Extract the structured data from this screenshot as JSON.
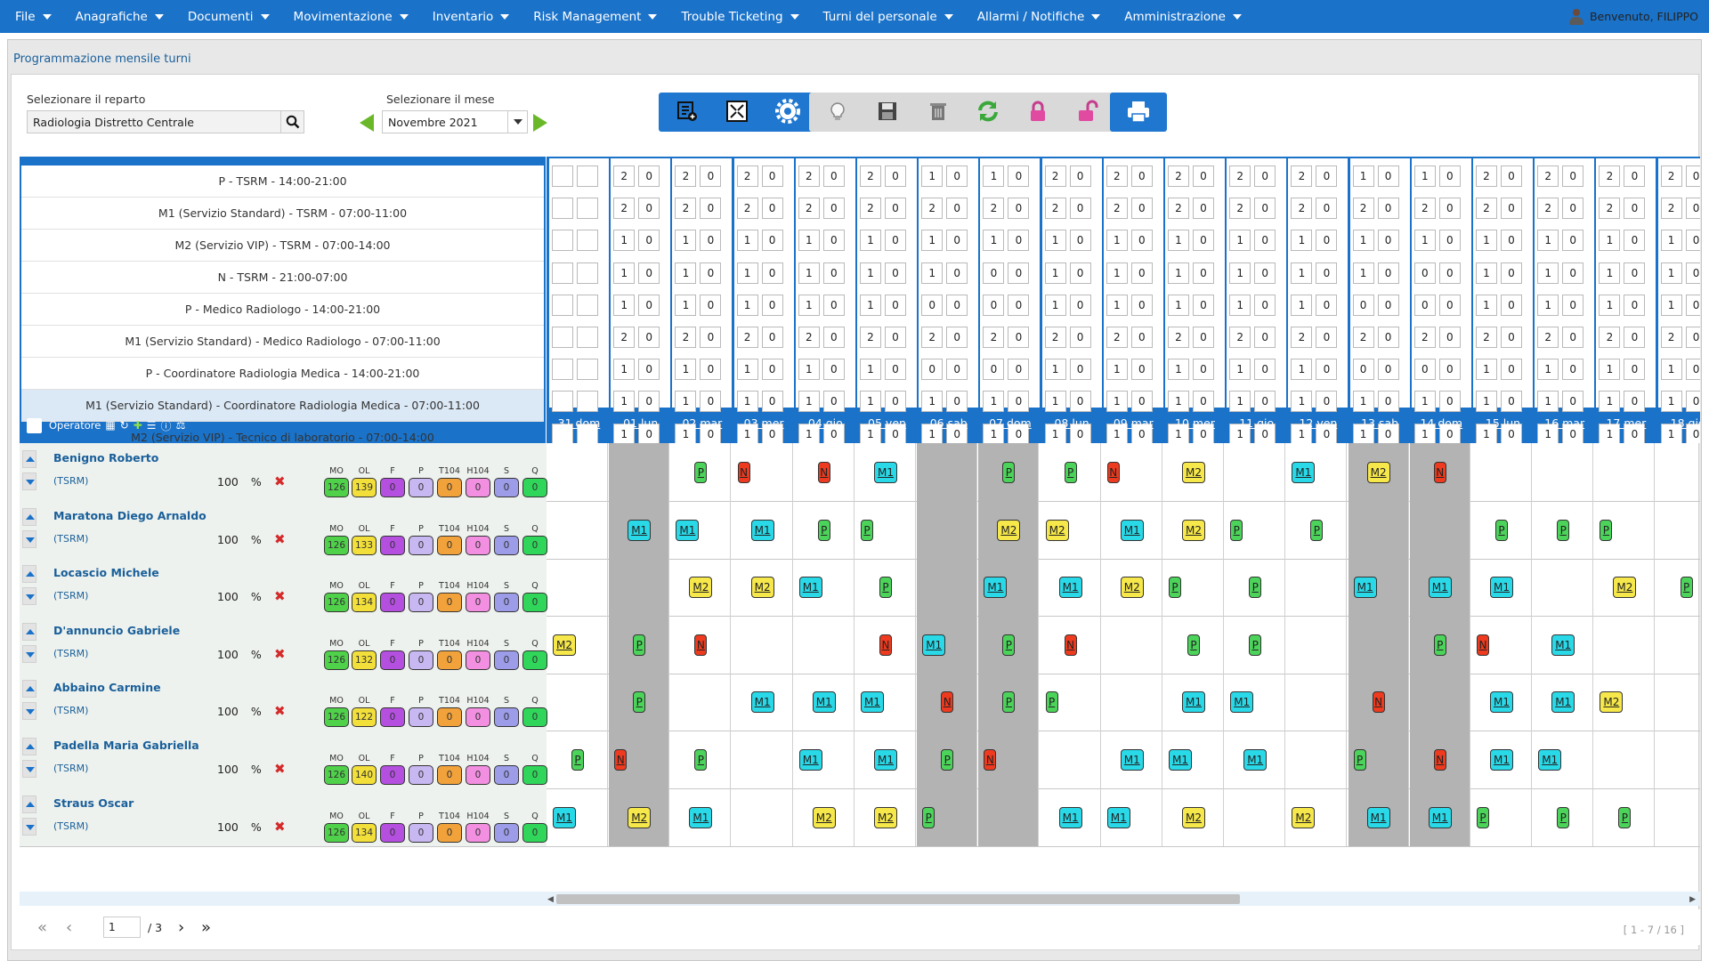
{
  "menu": {
    "items": [
      "File",
      "Anagrafiche",
      "Documenti",
      "Movimentazione",
      "Inventario",
      "Risk Management",
      "Trouble Ticketing",
      "Turni del personale",
      "Allarmi / Notifiche",
      "Amministrazione"
    ],
    "welcome": "Benvenuto, FILIPPO"
  },
  "page": {
    "title": "Programmazione mensile turni",
    "reparto_label": "Selezionare il reparto",
    "reparto_value": "Radiologia Distretto Centrale",
    "mese_label": "Selezionare il mese",
    "mese_value": "Novembre 2021"
  },
  "toolbar": [
    {
      "icon": "list-add-icon",
      "style": "blue"
    },
    {
      "icon": "expand-icon",
      "style": "blue"
    },
    {
      "icon": "gear-icon",
      "style": "blue"
    },
    {
      "icon": "lightbulb-icon",
      "style": "grey"
    },
    {
      "icon": "save-icon",
      "style": "grey"
    },
    {
      "icon": "trash-icon",
      "style": "grey"
    },
    {
      "icon": "refresh-icon",
      "style": "grey"
    },
    {
      "icon": "lock-icon",
      "style": "grey"
    },
    {
      "icon": "unlock-icon",
      "style": "grey"
    },
    {
      "icon": "print-icon",
      "style": "blue"
    }
  ],
  "requirements": [
    "P - TSRM - 14:00-21:00",
    "M1 (Servizio Standard) - TSRM - 07:00-11:00",
    "M2 (Servizio VIP) - TSRM - 07:00-14:00",
    "N - TSRM - 21:00-07:00",
    "P - Medico Radiologo - 14:00-21:00",
    "M1 (Servizio Standard) - Medico Radiologo - 07:00-11:00",
    "P - Coordinatore Radiologia Medica - 14:00-21:00",
    "M1 (Servizio Standard) - Coordinatore Radiologia Medica - 07:00-11:00",
    "M2 (Servizio VIP) - Tecnico di laboratorio - 07:00-14:00"
  ],
  "operatore_label": "Operatore",
  "days": [
    {
      "label": "31 dom",
      "weekend": false,
      "req": [
        [
          "",
          ""
        ],
        [
          "",
          ""
        ],
        [
          "",
          ""
        ],
        [
          "",
          ""
        ],
        [
          "",
          ""
        ],
        [
          "",
          ""
        ],
        [
          "",
          ""
        ],
        [
          "",
          ""
        ],
        [
          "",
          ""
        ]
      ]
    },
    {
      "label": "01 lun",
      "weekend": true,
      "req": [
        [
          "2",
          "0"
        ],
        [
          "2",
          "0"
        ],
        [
          "1",
          "0"
        ],
        [
          "1",
          "0"
        ],
        [
          "1",
          "0"
        ],
        [
          "2",
          "0"
        ],
        [
          "1",
          "0"
        ],
        [
          "1",
          "0"
        ],
        [
          "1",
          "0"
        ]
      ]
    },
    {
      "label": "02 mar",
      "weekend": false,
      "req": [
        [
          "2",
          "0"
        ],
        [
          "2",
          "0"
        ],
        [
          "1",
          "0"
        ],
        [
          "1",
          "0"
        ],
        [
          "1",
          "0"
        ],
        [
          "2",
          "0"
        ],
        [
          "1",
          "0"
        ],
        [
          "1",
          "0"
        ],
        [
          "1",
          "0"
        ]
      ]
    },
    {
      "label": "03 mer",
      "weekend": false,
      "req": [
        [
          "2",
          "0"
        ],
        [
          "2",
          "0"
        ],
        [
          "1",
          "0"
        ],
        [
          "1",
          "0"
        ],
        [
          "1",
          "0"
        ],
        [
          "2",
          "0"
        ],
        [
          "1",
          "0"
        ],
        [
          "1",
          "0"
        ],
        [
          "1",
          "0"
        ]
      ]
    },
    {
      "label": "04 gio",
      "weekend": false,
      "req": [
        [
          "2",
          "0"
        ],
        [
          "2",
          "0"
        ],
        [
          "1",
          "0"
        ],
        [
          "1",
          "0"
        ],
        [
          "1",
          "0"
        ],
        [
          "2",
          "0"
        ],
        [
          "1",
          "0"
        ],
        [
          "1",
          "0"
        ],
        [
          "1",
          "0"
        ]
      ]
    },
    {
      "label": "05 ven",
      "weekend": false,
      "req": [
        [
          "2",
          "0"
        ],
        [
          "2",
          "0"
        ],
        [
          "1",
          "0"
        ],
        [
          "1",
          "0"
        ],
        [
          "1",
          "0"
        ],
        [
          "2",
          "0"
        ],
        [
          "1",
          "0"
        ],
        [
          "1",
          "0"
        ],
        [
          "1",
          "0"
        ]
      ]
    },
    {
      "label": "06 sab",
      "weekend": true,
      "req": [
        [
          "1",
          "0"
        ],
        [
          "2",
          "0"
        ],
        [
          "1",
          "0"
        ],
        [
          "1",
          "0"
        ],
        [
          "0",
          "0"
        ],
        [
          "2",
          "0"
        ],
        [
          "0",
          "0"
        ],
        [
          "1",
          "0"
        ],
        [
          "1",
          "0"
        ]
      ]
    },
    {
      "label": "07 dom",
      "weekend": true,
      "req": [
        [
          "1",
          "0"
        ],
        [
          "2",
          "0"
        ],
        [
          "1",
          "0"
        ],
        [
          "0",
          "0"
        ],
        [
          "0",
          "0"
        ],
        [
          "2",
          "0"
        ],
        [
          "0",
          "0"
        ],
        [
          "1",
          "0"
        ],
        [
          "1",
          "0"
        ]
      ]
    },
    {
      "label": "08 lun",
      "weekend": false,
      "req": [
        [
          "2",
          "0"
        ],
        [
          "2",
          "0"
        ],
        [
          "1",
          "0"
        ],
        [
          "1",
          "0"
        ],
        [
          "1",
          "0"
        ],
        [
          "2",
          "0"
        ],
        [
          "1",
          "0"
        ],
        [
          "1",
          "0"
        ],
        [
          "1",
          "0"
        ]
      ]
    },
    {
      "label": "09 mar",
      "weekend": false,
      "req": [
        [
          "2",
          "0"
        ],
        [
          "2",
          "0"
        ],
        [
          "1",
          "0"
        ],
        [
          "1",
          "0"
        ],
        [
          "1",
          "0"
        ],
        [
          "2",
          "0"
        ],
        [
          "1",
          "0"
        ],
        [
          "1",
          "0"
        ],
        [
          "1",
          "0"
        ]
      ]
    },
    {
      "label": "10 mer",
      "weekend": false,
      "req": [
        [
          "2",
          "0"
        ],
        [
          "2",
          "0"
        ],
        [
          "1",
          "0"
        ],
        [
          "1",
          "0"
        ],
        [
          "1",
          "0"
        ],
        [
          "2",
          "0"
        ],
        [
          "1",
          "0"
        ],
        [
          "1",
          "0"
        ],
        [
          "1",
          "0"
        ]
      ]
    },
    {
      "label": "11 gio",
      "weekend": false,
      "req": [
        [
          "2",
          "0"
        ],
        [
          "2",
          "0"
        ],
        [
          "1",
          "0"
        ],
        [
          "1",
          "0"
        ],
        [
          "1",
          "0"
        ],
        [
          "2",
          "0"
        ],
        [
          "1",
          "0"
        ],
        [
          "1",
          "0"
        ],
        [
          "1",
          "0"
        ]
      ]
    },
    {
      "label": "12 ven",
      "weekend": false,
      "req": [
        [
          "2",
          "0"
        ],
        [
          "2",
          "0"
        ],
        [
          "1",
          "0"
        ],
        [
          "1",
          "0"
        ],
        [
          "1",
          "0"
        ],
        [
          "2",
          "0"
        ],
        [
          "1",
          "0"
        ],
        [
          "1",
          "0"
        ],
        [
          "1",
          "0"
        ]
      ]
    },
    {
      "label": "13 sab",
      "weekend": true,
      "req": [
        [
          "1",
          "0"
        ],
        [
          "2",
          "0"
        ],
        [
          "1",
          "0"
        ],
        [
          "1",
          "0"
        ],
        [
          "0",
          "0"
        ],
        [
          "2",
          "0"
        ],
        [
          "0",
          "0"
        ],
        [
          "1",
          "0"
        ],
        [
          "1",
          "0"
        ]
      ]
    },
    {
      "label": "14 dom",
      "weekend": true,
      "req": [
        [
          "1",
          "0"
        ],
        [
          "2",
          "0"
        ],
        [
          "1",
          "0"
        ],
        [
          "0",
          "0"
        ],
        [
          "0",
          "0"
        ],
        [
          "2",
          "0"
        ],
        [
          "0",
          "0"
        ],
        [
          "1",
          "0"
        ],
        [
          "1",
          "0"
        ]
      ]
    },
    {
      "label": "15 lun",
      "weekend": false,
      "req": [
        [
          "2",
          "0"
        ],
        [
          "2",
          "0"
        ],
        [
          "1",
          "0"
        ],
        [
          "1",
          "0"
        ],
        [
          "1",
          "0"
        ],
        [
          "2",
          "0"
        ],
        [
          "1",
          "0"
        ],
        [
          "1",
          "0"
        ],
        [
          "1",
          "0"
        ]
      ]
    },
    {
      "label": "16 mar",
      "weekend": false,
      "req": [
        [
          "2",
          "0"
        ],
        [
          "2",
          "0"
        ],
        [
          "1",
          "0"
        ],
        [
          "1",
          "0"
        ],
        [
          "1",
          "0"
        ],
        [
          "2",
          "0"
        ],
        [
          "1",
          "0"
        ],
        [
          "1",
          "0"
        ],
        [
          "1",
          "0"
        ]
      ]
    },
    {
      "label": "17 mer",
      "weekend": false,
      "req": [
        [
          "2",
          "0"
        ],
        [
          "2",
          "0"
        ],
        [
          "1",
          "0"
        ],
        [
          "1",
          "0"
        ],
        [
          "1",
          "0"
        ],
        [
          "2",
          "0"
        ],
        [
          "1",
          "0"
        ],
        [
          "1",
          "0"
        ],
        [
          "1",
          "0"
        ]
      ]
    },
    {
      "label": "18 gio",
      "weekend": false,
      "req": [
        [
          "2",
          "0"
        ],
        [
          "2",
          "0"
        ],
        [
          "1",
          "0"
        ],
        [
          "1",
          "0"
        ],
        [
          "1",
          "0"
        ],
        [
          "2",
          "0"
        ],
        [
          "1",
          "0"
        ],
        [
          "1",
          "0"
        ],
        [
          "1",
          "0"
        ]
      ]
    }
  ],
  "counter_headers": [
    "MO",
    "OL",
    "F",
    "P",
    "T104",
    "H104",
    "S",
    "Q"
  ],
  "counter_colors": [
    "#4fd14a",
    "#f2df3a",
    "#b44fe0",
    "#c8b8f2",
    "#f2a23a",
    "#f28fe0",
    "#9c9ce8",
    "#2fd65a"
  ],
  "operators": [
    {
      "name": "Benigno Roberto",
      "role": "(TSRM)",
      "pct": "100",
      "pct_unit": "%",
      "counters": [
        "126",
        "139",
        "0",
        "0",
        "0",
        "0",
        "0",
        "0"
      ],
      "shifts": [
        "",
        "",
        "P",
        "N",
        "N",
        "M1",
        "",
        "P",
        "P",
        "N",
        "M2",
        "",
        "M1",
        "M2",
        "N",
        "",
        "",
        "",
        ""
      ]
    },
    {
      "name": "Maratona Diego Arnaldo",
      "role": "(TSRM)",
      "pct": "100",
      "pct_unit": "%",
      "counters": [
        "126",
        "133",
        "0",
        "0",
        "0",
        "0",
        "0",
        "0"
      ],
      "shifts": [
        "",
        "M1",
        "M1",
        "M1",
        "P",
        "P",
        "",
        "M2",
        "M2",
        "M1",
        "M2",
        "P",
        "P",
        "",
        "",
        "P",
        "P",
        "P",
        ""
      ]
    },
    {
      "name": "Locascio Michele",
      "role": "(TSRM)",
      "pct": "100",
      "pct_unit": "%",
      "counters": [
        "126",
        "134",
        "0",
        "0",
        "0",
        "0",
        "0",
        "0"
      ],
      "shifts": [
        "",
        "",
        "M2",
        "M2",
        "M1",
        "P",
        "",
        "M1",
        "M1",
        "M2",
        "P",
        "P",
        "",
        "M1",
        "M1",
        "M1",
        "",
        "M2",
        "P"
      ]
    },
    {
      "name": "D'annuncio Gabriele",
      "role": "(TSRM)",
      "pct": "100",
      "pct_unit": "%",
      "counters": [
        "126",
        "132",
        "0",
        "0",
        "0",
        "0",
        "0",
        "0"
      ],
      "shifts": [
        "M2",
        "P",
        "N",
        "",
        "",
        "N",
        "M1",
        "P",
        "N",
        "",
        "P",
        "P",
        "",
        "",
        "P",
        "N",
        "M1",
        "",
        ""
      ]
    },
    {
      "name": "Abbaino Carmine",
      "role": "(TSRM)",
      "pct": "100",
      "pct_unit": "%",
      "counters": [
        "126",
        "122",
        "0",
        "0",
        "0",
        "0",
        "0",
        "0"
      ],
      "shifts": [
        "",
        "P",
        "",
        "M1",
        "M1",
        "M1",
        "N",
        "P",
        "P",
        "",
        "M1",
        "M1",
        "",
        "N",
        "",
        "M1",
        "M1",
        "M2",
        ""
      ]
    },
    {
      "name": "Padella Maria Gabriella",
      "role": "(TSRM)",
      "pct": "100",
      "pct_unit": "%",
      "counters": [
        "126",
        "140",
        "0",
        "0",
        "0",
        "0",
        "0",
        "0"
      ],
      "shifts": [
        "P",
        "N",
        "P",
        "",
        "M1",
        "M1",
        "P",
        "N",
        "",
        "M1",
        "M1",
        "M1",
        "",
        "P",
        "N",
        "M1",
        "M1",
        "",
        ""
      ]
    },
    {
      "name": "Straus Oscar",
      "role": "(TSRM)",
      "pct": "100",
      "pct_unit": "%",
      "counters": [
        "126",
        "134",
        "0",
        "0",
        "0",
        "0",
        "0",
        "0"
      ],
      "shifts": [
        "M1",
        "M2",
        "M1",
        "",
        "M2",
        "M2",
        "P",
        "",
        "M1",
        "M1",
        "M2",
        "",
        "M2",
        "M1",
        "M1",
        "P",
        "P",
        "P",
        ""
      ]
    }
  ],
  "pager": {
    "page": "1",
    "total": "/ 3",
    "records": "[ 1 - 7 / 16 ]"
  }
}
